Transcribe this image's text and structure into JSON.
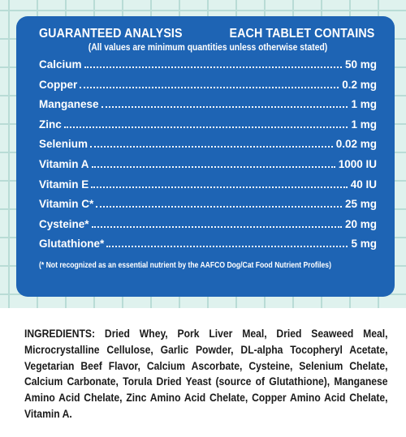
{
  "analysis": {
    "heading_left": "GUARANTEED ANALYSIS",
    "heading_right": "EACH TABLET CONTAINS",
    "subnote": "(All values are minimum quantities unless otherwise stated)",
    "rows": [
      {
        "name": "Calcium",
        "value": "50 mg"
      },
      {
        "name": "Copper",
        "value": "0.2 mg"
      },
      {
        "name": "Manganese",
        "value": "1 mg"
      },
      {
        "name": "Zinc",
        "value": "1 mg"
      },
      {
        "name": "Selenium",
        "value": "0.02 mg"
      },
      {
        "name": "Vitamin A",
        "value": "1000 IU"
      },
      {
        "name": "Vitamin E",
        "value": "40 IU"
      },
      {
        "name": "Vitamin C*",
        "value": "25 mg"
      },
      {
        "name": "Cysteine*",
        "value": "20 mg"
      },
      {
        "name": "Glutathione*",
        "value": "5 mg"
      }
    ],
    "footnote": "(* Not recognized as an essential nutrient by the AAFCO Dog/Cat Food Nutrient Profiles)"
  },
  "ingredients": {
    "label": "INGREDIENTS:",
    "text": "Dried Whey, Pork Liver Meal, Dried Seaweed Meal, Microcrystalline Cellulose, Garlic Powder, DL-alpha Tocopheryl Acetate, Vegetarian Beef Flavor, Calcium Ascorbate, Cysteine, Selenium Chelate, Calcium Carbonate, Torula Dried Yeast (source of Glutathione), Manganese Amino Acid Chelate, Zinc Amino Acid Chelate, Copper Amino Acid Chelate, Vitamin A."
  },
  "colors": {
    "panel": "#1e64b4",
    "background": "#dff2ee",
    "grid": "#b9dcd6"
  }
}
